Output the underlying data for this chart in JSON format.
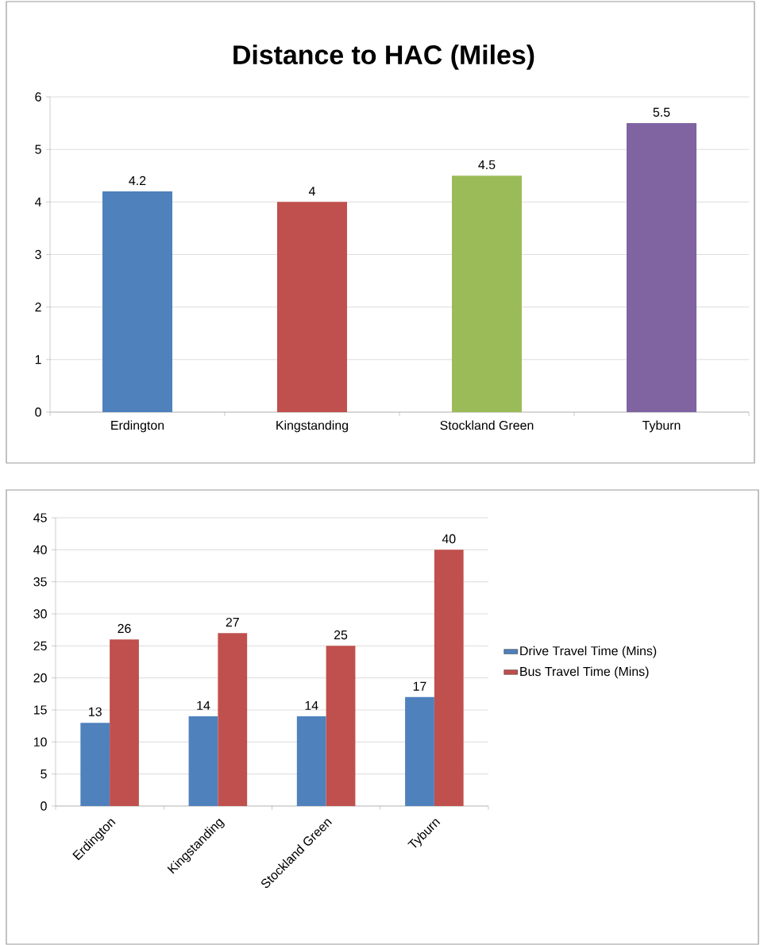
{
  "chart_data": [
    {
      "type": "bar",
      "title": "Distance to HAC (Miles)",
      "categories": [
        "Erdington",
        "Kingstanding",
        "Stockland Green",
        "Tyburn"
      ],
      "values": [
        4.2,
        4,
        4.5,
        5.5
      ],
      "colors": [
        "#4f81bd",
        "#c0504d",
        "#9bbb59",
        "#8064a2"
      ],
      "ylim": [
        0,
        6
      ],
      "yticks": [
        0,
        1,
        2,
        3,
        4,
        5,
        6
      ],
      "grid": "y",
      "data_labels": true
    },
    {
      "type": "bar",
      "categories": [
        "Erdington",
        "Kingstanding",
        "Stockland Green",
        "Tyburn"
      ],
      "series": [
        {
          "name": "Drive Travel Time (Mins)",
          "color": "#4f81bd",
          "values": [
            13,
            14,
            14,
            17
          ]
        },
        {
          "name": "Bus Travel Time (Mins)",
          "color": "#c0504d",
          "values": [
            26,
            27,
            25,
            40
          ]
        }
      ],
      "ylim": [
        0,
        45
      ],
      "yticks": [
        0,
        5,
        10,
        15,
        20,
        25,
        30,
        35,
        40,
        45
      ],
      "grid": "y",
      "legend": "right",
      "data_labels": true
    }
  ]
}
